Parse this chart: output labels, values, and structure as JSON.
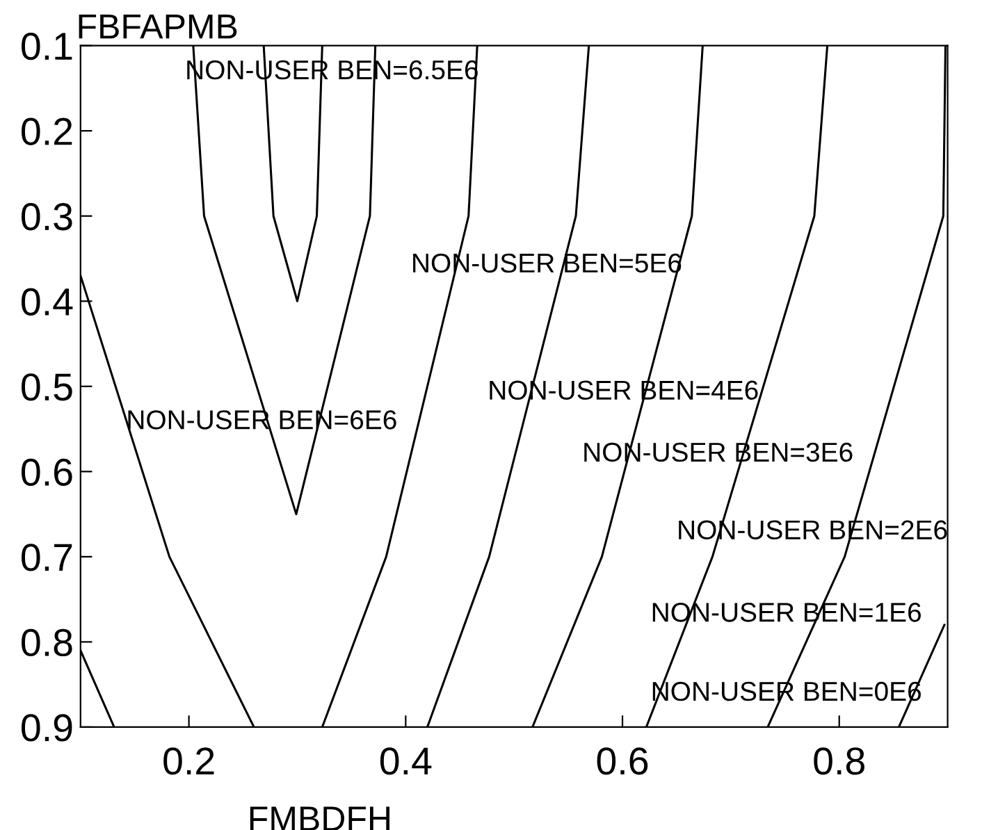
{
  "chart_data": {
    "type": "line",
    "xlabel": "FMBDFH",
    "ylabel": "FBFAPMB",
    "xlim": [
      0.1,
      0.9
    ],
    "ylim": [
      0.9,
      0.1
    ],
    "xticks": [
      0.2,
      0.4,
      0.6,
      0.8
    ],
    "yticks": [
      0.1,
      0.2,
      0.3,
      0.4,
      0.5,
      0.6,
      0.7,
      0.8,
      0.9
    ],
    "grid": false,
    "legend": false,
    "marker": "none",
    "line_style": "solid",
    "series": [
      {
        "color": "#000000",
        "x": [
          0.269,
          0.278,
          0.3,
          0.318,
          0.323
        ],
        "values": [
          0.1,
          0.3,
          0.4,
          0.3,
          0.1
        ]
      },
      {
        "color": "#000000",
        "x": [
          0.204,
          0.214,
          0.299,
          0.367,
          0.372
        ],
        "values": [
          0.1,
          0.3,
          0.65,
          0.3,
          0.1
        ]
      },
      {
        "color": "#000000",
        "x": [
          0.1,
          0.182,
          0.26
        ],
        "values": [
          0.37,
          0.7,
          0.9
        ]
      },
      {
        "color": "#000000",
        "x": [
          0.323,
          0.382,
          0.458,
          0.466
        ],
        "values": [
          0.9,
          0.7,
          0.3,
          0.1
        ]
      },
      {
        "color": "#000000",
        "x": [
          0.1,
          0.131
        ],
        "values": [
          0.81,
          0.9
        ]
      },
      {
        "color": "#000000",
        "x": [
          0.569,
          0.557,
          0.477,
          0.42
        ],
        "values": [
          0.1,
          0.3,
          0.7,
          0.9
        ]
      },
      {
        "color": "#000000",
        "x": [
          0.674,
          0.664,
          0.581,
          0.517
        ],
        "values": [
          0.1,
          0.3,
          0.7,
          0.9
        ]
      },
      {
        "color": "#000000",
        "x": [
          0.789,
          0.777,
          0.683,
          0.622
        ],
        "values": [
          0.1,
          0.3,
          0.7,
          0.9
        ]
      },
      {
        "color": "#000000",
        "x": [
          0.898,
          0.896,
          0.805,
          0.734
        ],
        "values": [
          0.1,
          0.3,
          0.7,
          0.9
        ]
      },
      {
        "color": "#000000",
        "x": [
          0.897,
          0.855
        ],
        "values": [
          0.78,
          0.9
        ]
      }
    ],
    "annotations": [
      "NON-USER BEN=6.5E6",
      "NON-USER BEN=5E6",
      "NON-USER BEN=4E6",
      "NON-USER BEN=6E6",
      "NON-USER BEN=3E6",
      "NON-USER BEN=2E6",
      "NON-USER BEN=1E6",
      "NON-USER BEN=0E6"
    ]
  }
}
